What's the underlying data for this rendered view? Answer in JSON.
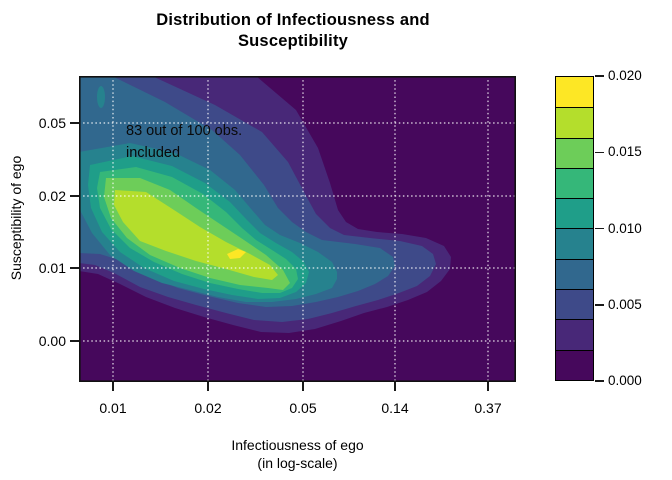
{
  "title": {
    "line1": "Distribution of Infectiousness and",
    "line2": "Susceptibility"
  },
  "annotation": {
    "line1": "83 out of 100 obs.",
    "line2": "included"
  },
  "x_axis": {
    "title_line1": "Infectiousness of ego",
    "title_line2": "(in log-scale)",
    "tick_labels": [
      "0.01",
      "0.02",
      "0.05",
      "0.14",
      "0.37"
    ]
  },
  "y_axis": {
    "title": "Susceptibility of ego",
    "tick_labels": [
      "0.05",
      "0.02",
      "0.01",
      "0.00"
    ]
  },
  "legend": {
    "tick_labels": [
      "0.020",
      "0.015",
      "0.010",
      "0.005",
      "0.000"
    ]
  },
  "chart_data": {
    "type": "filled_contour_density",
    "title": "Distribution of Infectiousness and Susceptibility",
    "xlabel": "Infectiousness of ego (in log-scale)",
    "ylabel": "Susceptibility of ego",
    "x_scale": "log",
    "x_ticks": [
      0.01,
      0.02,
      0.05,
      0.14,
      0.37
    ],
    "y_ticks": [
      0.0,
      0.01,
      0.02,
      0.05
    ],
    "colorbar_ticks": [
      0.0,
      0.005,
      0.01,
      0.015,
      0.02
    ],
    "annotation": "83 out of 100 obs. included",
    "grid": true,
    "gridline_color": "#ffffff",
    "legend_position": "right",
    "density_levels": [
      {
        "from": 0.0,
        "to": 0.002,
        "color": "#46085C"
      },
      {
        "from": 0.002,
        "to": 0.004,
        "color": "#482878"
      },
      {
        "from": 0.004,
        "to": 0.006,
        "color": "#3E4A89"
      },
      {
        "from": 0.006,
        "to": 0.008,
        "color": "#31688E"
      },
      {
        "from": 0.008,
        "to": 0.01,
        "color": "#26828E"
      },
      {
        "from": 0.01,
        "to": 0.012,
        "color": "#1F9E89"
      },
      {
        "from": 0.012,
        "to": 0.014,
        "color": "#35B779"
      },
      {
        "from": 0.014,
        "to": 0.016,
        "color": "#6DCD59"
      },
      {
        "from": 0.016,
        "to": 0.018,
        "color": "#B4DE2C"
      },
      {
        "from": 0.018,
        "to": 0.02,
        "color": "#FDE725"
      }
    ],
    "peak": {
      "x_approx": 0.03,
      "y_approx": 0.012,
      "density_band": "0.018-0.020"
    },
    "ridge_description": "High-density ridge runs diagonally from about (x=0.01, y=0.02) down to the peak near (x=0.03, y=0.012), with a low-density tail extending right to about x=0.2 at y=0.01 and a secondary lobe at the upper-left corner near (x=0.008, y=0.06)"
  }
}
